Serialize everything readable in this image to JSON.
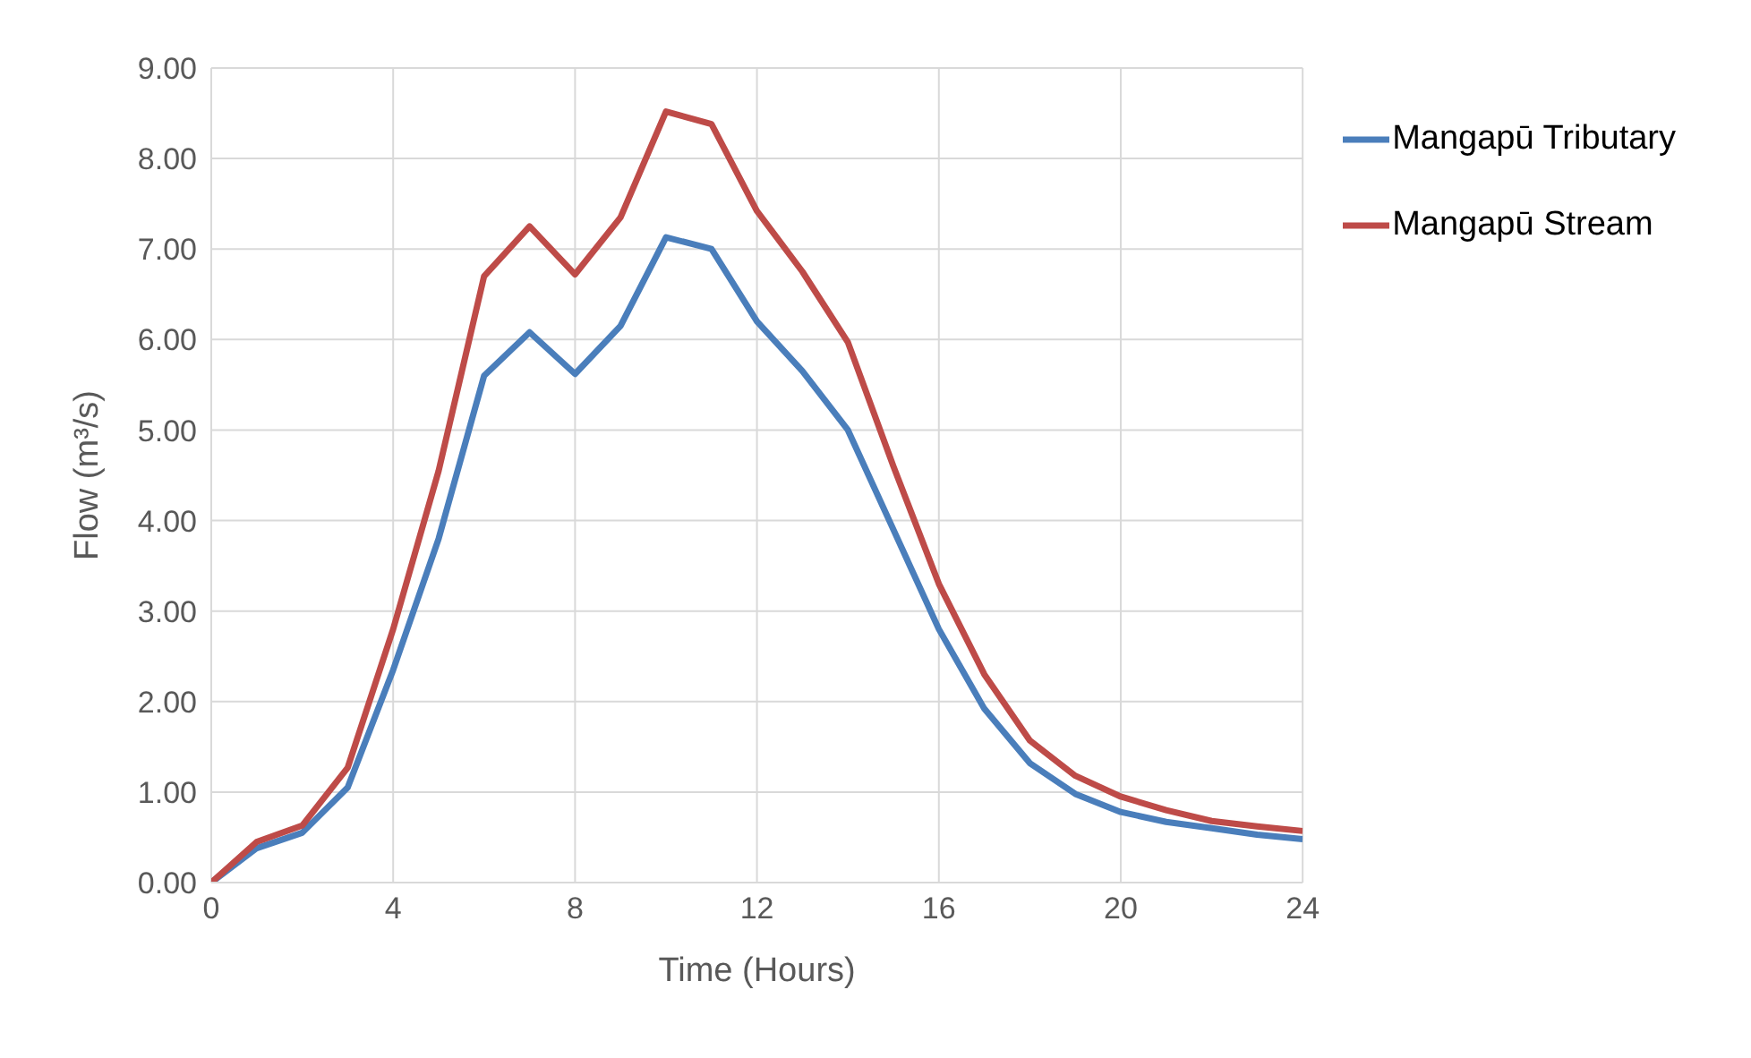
{
  "chart_data": {
    "type": "line",
    "xlabel": "Time (Hours)",
    "ylabel": "Flow (m³/s)",
    "x": [
      0,
      1,
      2,
      3,
      4,
      5,
      6,
      7,
      8,
      9,
      10,
      11,
      12,
      13,
      14,
      15,
      16,
      17,
      18,
      19,
      20,
      21,
      22,
      23,
      24
    ],
    "series": [
      {
        "name": "Mangapū Tributary",
        "color": "#4a7ebb",
        "values": [
          0,
          0.38,
          0.55,
          1.05,
          2.35,
          3.8,
          5.6,
          6.08,
          5.62,
          6.15,
          7.13,
          7.0,
          6.2,
          5.65,
          5.0,
          3.9,
          2.8,
          1.92,
          1.32,
          0.98,
          0.78,
          0.67,
          0.6,
          0.53,
          0.48
        ]
      },
      {
        "name": "Mangapū Stream",
        "color": "#be4b48",
        "values": [
          0,
          0.45,
          0.63,
          1.27,
          2.8,
          4.55,
          6.7,
          7.25,
          6.72,
          7.35,
          8.52,
          8.38,
          7.42,
          6.75,
          5.97,
          4.6,
          3.3,
          2.3,
          1.57,
          1.18,
          0.95,
          0.8,
          0.68,
          0.62,
          0.57
        ]
      }
    ],
    "xlim": [
      0,
      24
    ],
    "xticks": [
      0,
      4,
      8,
      12,
      16,
      20,
      24
    ],
    "ylim": [
      0,
      9
    ],
    "yticks": [
      {
        "value": 0,
        "label": "0.00"
      },
      {
        "value": 1,
        "label": "1.00"
      },
      {
        "value": 2,
        "label": "2.00"
      },
      {
        "value": 3,
        "label": "3.00"
      },
      {
        "value": 4,
        "label": "4.00"
      },
      {
        "value": 5,
        "label": "5.00"
      },
      {
        "value": 6,
        "label": "6.00"
      },
      {
        "value": 7,
        "label": "7.00"
      },
      {
        "value": 8,
        "label": "8.00"
      },
      {
        "value": 9,
        "label": "9.00"
      }
    ],
    "grid": true,
    "legend": "top right",
    "marker": "none",
    "line_style": "solid"
  }
}
